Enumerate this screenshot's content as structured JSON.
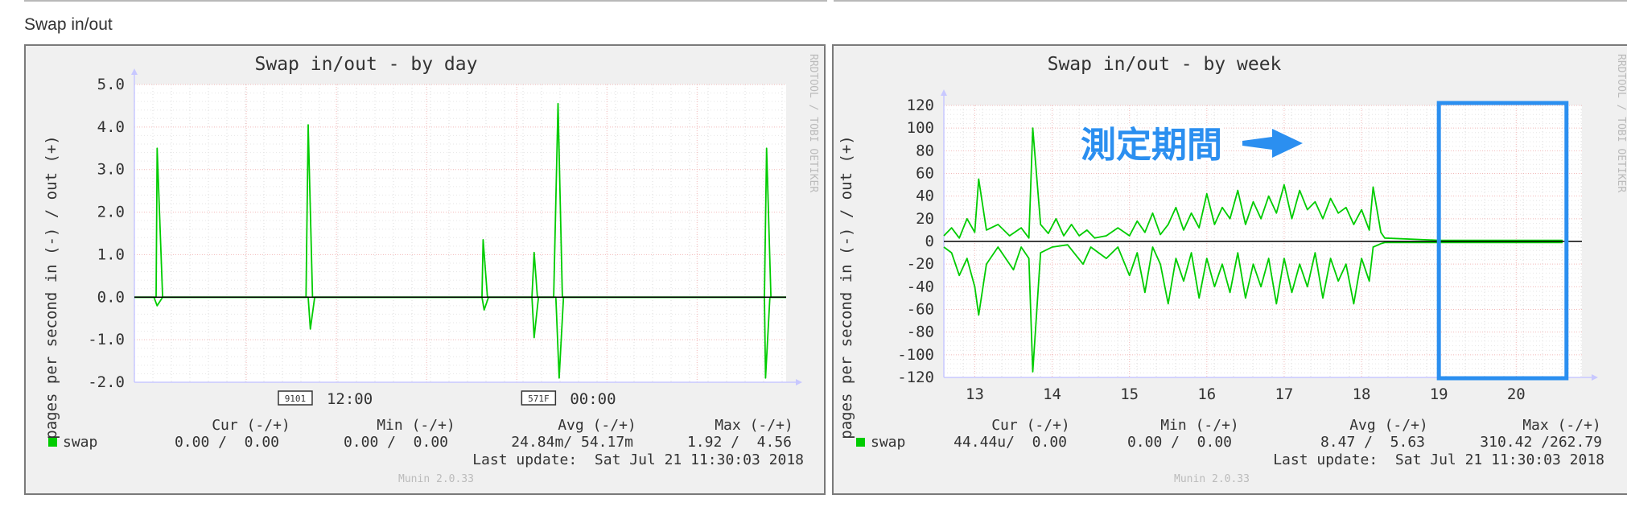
{
  "section": {
    "title": "Swap in/out"
  },
  "annotation": {
    "label": "測定期間"
  },
  "chart_data": [
    {
      "type": "line",
      "title": "Swap in/out - by day",
      "ylabel": "pages per second in (-) / out (+)",
      "side_label": "RRDTOOL / TOBI OETIKER",
      "ylim": [
        -2.0,
        5.0
      ],
      "yticks": [
        -2.0,
        -1.0,
        0.0,
        1.0,
        2.0,
        3.0,
        4.0,
        5.0
      ],
      "ytick_labels": [
        "-2.0",
        "-1.0",
        "0.0",
        "1.0",
        "2.0",
        "3.0",
        "4.0",
        "5.0"
      ],
      "xlim": [
        0,
        30
      ],
      "xtick_labels": [
        {
          "x": 8.85,
          "label": "12:00",
          "box": "9101"
        },
        {
          "x": 20.05,
          "label": "00:00",
          "box": "571F"
        }
      ],
      "series": [
        {
          "name": "swap",
          "color": "#00cc00",
          "out": [
            [
              0,
              0
            ],
            [
              1.0,
              0
            ],
            [
              1.05,
              3.5
            ],
            [
              1.3,
              0
            ],
            [
              7.9,
              0
            ],
            [
              8.0,
              4.05
            ],
            [
              8.2,
              0
            ],
            [
              16.0,
              0
            ],
            [
              16.05,
              1.35
            ],
            [
              16.25,
              0
            ],
            [
              18.3,
              0
            ],
            [
              18.4,
              1.05
            ],
            [
              18.55,
              0
            ],
            [
              19.3,
              0
            ],
            [
              19.5,
              4.55
            ],
            [
              19.7,
              0
            ],
            [
              29.0,
              0
            ],
            [
              29.1,
              3.5
            ],
            [
              29.3,
              0
            ],
            [
              30,
              0
            ]
          ],
          "in": [
            [
              0,
              0
            ],
            [
              0.9,
              0
            ],
            [
              1.05,
              -0.2
            ],
            [
              1.3,
              0
            ],
            [
              8.0,
              0
            ],
            [
              8.1,
              -0.75
            ],
            [
              8.3,
              0
            ],
            [
              16.0,
              0
            ],
            [
              16.1,
              -0.3
            ],
            [
              16.3,
              0
            ],
            [
              18.3,
              0
            ],
            [
              18.4,
              -0.95
            ],
            [
              18.6,
              0
            ],
            [
              19.4,
              0
            ],
            [
              19.55,
              -1.9
            ],
            [
              19.75,
              0
            ],
            [
              29.0,
              0
            ],
            [
              29.05,
              -1.9
            ],
            [
              29.25,
              0
            ],
            [
              30,
              0
            ]
          ]
        }
      ],
      "legend": {
        "headers": [
          "Cur (-/+)",
          "Min (-/+)",
          "Avg (-/+)",
          "Max (-/+)"
        ],
        "name": "swap",
        "cur": "0.00 /  0.00",
        "min": "0.00 /  0.00",
        "avg": "24.84m/ 54.17m",
        "max": "1.92 /  4.56"
      },
      "last_update": "Last update:  Sat Jul 21 11:30:03 2018",
      "footer": "Munin 2.0.33",
      "grid": true
    },
    {
      "type": "line",
      "title": "Swap in/out - by week",
      "ylabel": "pages per second in (-) / out (+)",
      "side_label": "RRDTOOL / TOBI OETIKER",
      "ylim": [
        -120,
        120
      ],
      "yticks": [
        -120,
        -100,
        -80,
        -60,
        -40,
        -20,
        0,
        20,
        40,
        60,
        80,
        100,
        120
      ],
      "ytick_labels": [
        "-120",
        "-100",
        "-80",
        "-60",
        "-40",
        "-20",
        "0",
        "20",
        "40",
        "60",
        "80",
        "100",
        "120"
      ],
      "xlim": [
        12.6,
        20.85
      ],
      "xtick_labels": [
        {
          "x": 13,
          "label": "13"
        },
        {
          "x": 14,
          "label": "14"
        },
        {
          "x": 15,
          "label": "15"
        },
        {
          "x": 16,
          "label": "16"
        },
        {
          "x": 17,
          "label": "17"
        },
        {
          "x": 18,
          "label": "18"
        },
        {
          "x": 19,
          "label": "19"
        },
        {
          "x": 20,
          "label": "20"
        }
      ],
      "highlight": [
        19.0,
        20.65
      ],
      "series": [
        {
          "name": "swap",
          "color": "#00cc00",
          "out": [
            [
              12.6,
              5
            ],
            [
              12.7,
              12
            ],
            [
              12.8,
              3
            ],
            [
              12.9,
              20
            ],
            [
              13.0,
              8
            ],
            [
              13.05,
              55
            ],
            [
              13.15,
              10
            ],
            [
              13.3,
              15
            ],
            [
              13.45,
              5
            ],
            [
              13.6,
              12
            ],
            [
              13.7,
              3
            ],
            [
              13.75,
              100
            ],
            [
              13.85,
              15
            ],
            [
              13.95,
              7
            ],
            [
              14.05,
              20
            ],
            [
              14.15,
              5
            ],
            [
              14.25,
              15
            ],
            [
              14.35,
              5
            ],
            [
              14.45,
              10
            ],
            [
              14.55,
              3
            ],
            [
              14.7,
              5
            ],
            [
              14.85,
              12
            ],
            [
              15.0,
              5
            ],
            [
              15.1,
              18
            ],
            [
              15.2,
              8
            ],
            [
              15.3,
              25
            ],
            [
              15.4,
              6
            ],
            [
              15.5,
              15
            ],
            [
              15.6,
              30
            ],
            [
              15.7,
              10
            ],
            [
              15.8,
              25
            ],
            [
              15.9,
              12
            ],
            [
              16.0,
              42
            ],
            [
              16.1,
              15
            ],
            [
              16.2,
              30
            ],
            [
              16.3,
              20
            ],
            [
              16.4,
              45
            ],
            [
              16.5,
              15
            ],
            [
              16.6,
              35
            ],
            [
              16.7,
              20
            ],
            [
              16.8,
              40
            ],
            [
              16.9,
              25
            ],
            [
              17.0,
              50
            ],
            [
              17.1,
              20
            ],
            [
              17.2,
              45
            ],
            [
              17.3,
              28
            ],
            [
              17.4,
              35
            ],
            [
              17.5,
              20
            ],
            [
              17.6,
              38
            ],
            [
              17.7,
              25
            ],
            [
              17.8,
              30
            ],
            [
              17.9,
              15
            ],
            [
              18.0,
              28
            ],
            [
              18.1,
              10
            ],
            [
              18.15,
              48
            ],
            [
              18.25,
              8
            ],
            [
              18.3,
              3
            ],
            [
              19.0,
              1
            ],
            [
              20.6,
              1
            ]
          ],
          "in": [
            [
              12.6,
              -5
            ],
            [
              12.7,
              -10
            ],
            [
              12.8,
              -30
            ],
            [
              12.9,
              -15
            ],
            [
              13.0,
              -40
            ],
            [
              13.05,
              -65
            ],
            [
              13.15,
              -20
            ],
            [
              13.3,
              -5
            ],
            [
              13.5,
              -25
            ],
            [
              13.6,
              -5
            ],
            [
              13.7,
              -15
            ],
            [
              13.75,
              -115
            ],
            [
              13.85,
              -10
            ],
            [
              14.0,
              -5
            ],
            [
              14.2,
              -3
            ],
            [
              14.4,
              -20
            ],
            [
              14.5,
              -5
            ],
            [
              14.7,
              -15
            ],
            [
              14.85,
              -5
            ],
            [
              15.0,
              -30
            ],
            [
              15.1,
              -10
            ],
            [
              15.2,
              -45
            ],
            [
              15.3,
              -5
            ],
            [
              15.4,
              -20
            ],
            [
              15.5,
              -55
            ],
            [
              15.6,
              -15
            ],
            [
              15.7,
              -35
            ],
            [
              15.8,
              -10
            ],
            [
              15.9,
              -50
            ],
            [
              16.0,
              -15
            ],
            [
              16.1,
              -40
            ],
            [
              16.2,
              -20
            ],
            [
              16.3,
              -45
            ],
            [
              16.4,
              -10
            ],
            [
              16.5,
              -50
            ],
            [
              16.6,
              -20
            ],
            [
              16.7,
              -40
            ],
            [
              16.8,
              -15
            ],
            [
              16.9,
              -55
            ],
            [
              17.0,
              -15
            ],
            [
              17.1,
              -45
            ],
            [
              17.2,
              -20
            ],
            [
              17.3,
              -40
            ],
            [
              17.4,
              -10
            ],
            [
              17.5,
              -50
            ],
            [
              17.6,
              -15
            ],
            [
              17.7,
              -35
            ],
            [
              17.8,
              -20
            ],
            [
              17.9,
              -55
            ],
            [
              18.0,
              -15
            ],
            [
              18.1,
              -35
            ],
            [
              18.15,
              -5
            ],
            [
              18.25,
              -2
            ],
            [
              18.3,
              -1
            ],
            [
              19.0,
              -1
            ],
            [
              20.6,
              -1
            ]
          ]
        }
      ],
      "legend": {
        "headers": [
          "Cur (-/+)",
          "Min (-/+)",
          "Avg (-/+)",
          "Max (-/+)"
        ],
        "name": "swap",
        "cur": "44.44u/  0.00",
        "min": "0.00 /  0.00",
        "avg": "8.47 /  5.63",
        "max": "310.42 /262.79"
      },
      "last_update": "Last update:  Sat Jul 21 11:30:03 2018",
      "footer": "Munin 2.0.33",
      "grid": true
    }
  ]
}
